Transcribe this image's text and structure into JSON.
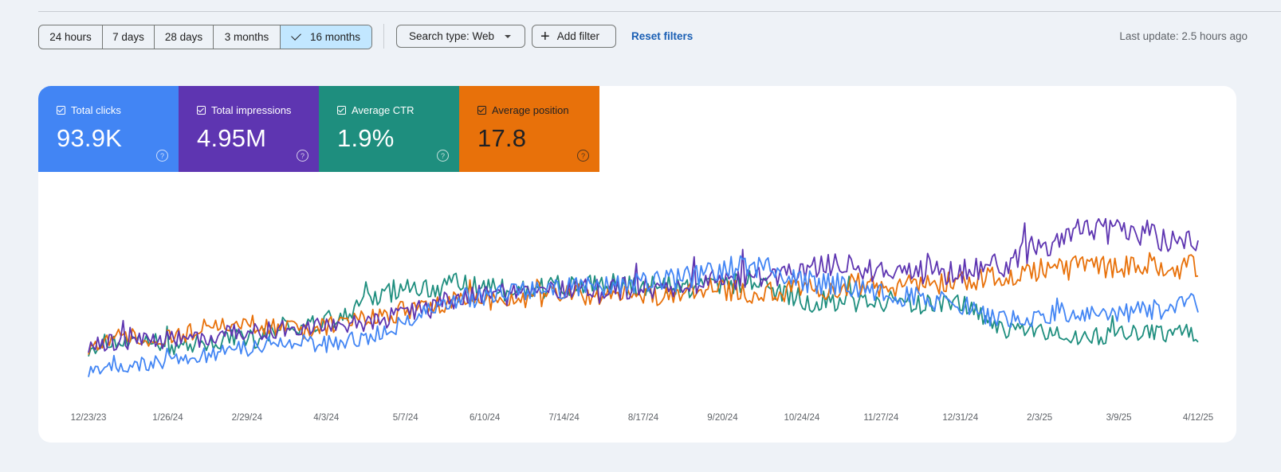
{
  "toolbar": {
    "ranges": [
      {
        "label": "24 hours",
        "selected": false
      },
      {
        "label": "7 days",
        "selected": false
      },
      {
        "label": "28 days",
        "selected": false
      },
      {
        "label": "3 months",
        "selected": false
      },
      {
        "label": "16 months",
        "selected": true
      }
    ],
    "search_type": "Search type: Web",
    "add_filter": "Add filter",
    "reset_filters": "Reset filters",
    "last_update": "Last update: 2.5 hours ago"
  },
  "metrics": [
    {
      "label": "Total clicks",
      "value": "93.9K",
      "color": "#4285f4",
      "checked": true
    },
    {
      "label": "Total impressions",
      "value": "4.95M",
      "color": "#5e35b1",
      "checked": true
    },
    {
      "label": "Average CTR",
      "value": "1.9%",
      "color": "#1e8e7e",
      "checked": true
    },
    {
      "label": "Average position",
      "value": "17.8",
      "color": "#e8710a",
      "checked": true
    }
  ],
  "chart_data": {
    "type": "line",
    "x_range": [
      "12/23/23",
      "4/18/25"
    ],
    "x_ticks": [
      "12/23/23",
      "1/26/24",
      "2/29/24",
      "4/3/24",
      "5/7/24",
      "6/10/24",
      "7/14/24",
      "8/17/24",
      "9/20/24",
      "10/24/24",
      "11/27/24",
      "12/31/24",
      "2/3/25",
      "3/9/25",
      "4/12/25"
    ],
    "y_axis_labels_visible": false,
    "series": [
      {
        "color": "#1e8e7e",
        "values": [
          0.22,
          0.26,
          0.24,
          0.26,
          0.22,
          0.25,
          0.25,
          0.29,
          0.26,
          0.35,
          0.33,
          0.36,
          0.39,
          0.46,
          0.52,
          0.57,
          0.54,
          0.57,
          0.55,
          0.55,
          0.53,
          0.54,
          0.57,
          0.54,
          0.57,
          0.55,
          0.56,
          0.57,
          0.55,
          0.56,
          0.58,
          0.58,
          0.54,
          0.51,
          0.47,
          0.48,
          0.47,
          0.48,
          0.47,
          0.46,
          0.45,
          0.46,
          0.38,
          0.32,
          0.31,
          0.3,
          0.29,
          0.28,
          0.3,
          0.3,
          0.31,
          0.3,
          0.3
        ]
      },
      {
        "color": "#e8710a",
        "values": [
          0.23,
          0.28,
          0.28,
          0.26,
          0.28,
          0.32,
          0.34,
          0.36,
          0.35,
          0.33,
          0.32,
          0.34,
          0.36,
          0.38,
          0.4,
          0.43,
          0.45,
          0.48,
          0.46,
          0.48,
          0.5,
          0.5,
          0.52,
          0.51,
          0.52,
          0.5,
          0.52,
          0.51,
          0.53,
          0.55,
          0.53,
          0.52,
          0.52,
          0.53,
          0.54,
          0.55,
          0.57,
          0.56,
          0.55,
          0.58,
          0.57,
          0.58,
          0.6,
          0.61,
          0.64,
          0.66,
          0.65,
          0.67,
          0.66,
          0.68,
          0.67,
          0.66,
          0.67
        ]
      },
      {
        "color": "#5e35b1",
        "values": [
          0.24,
          0.25,
          0.25,
          0.26,
          0.27,
          0.27,
          0.29,
          0.31,
          0.31,
          0.32,
          0.34,
          0.34,
          0.35,
          0.36,
          0.38,
          0.41,
          0.44,
          0.49,
          0.5,
          0.52,
          0.51,
          0.52,
          0.54,
          0.56,
          0.54,
          0.55,
          0.55,
          0.56,
          0.56,
          0.58,
          0.59,
          0.6,
          0.61,
          0.62,
          0.65,
          0.67,
          0.66,
          0.64,
          0.63,
          0.64,
          0.63,
          0.64,
          0.66,
          0.68,
          0.75,
          0.8,
          0.84,
          0.86,
          0.85,
          0.84,
          0.83,
          0.82,
          0.81
        ]
      },
      {
        "color": "#4285f4",
        "values": [
          0.1,
          0.11,
          0.12,
          0.14,
          0.16,
          0.18,
          0.19,
          0.21,
          0.23,
          0.25,
          0.25,
          0.24,
          0.26,
          0.28,
          0.31,
          0.36,
          0.44,
          0.48,
          0.5,
          0.52,
          0.54,
          0.53,
          0.55,
          0.56,
          0.55,
          0.56,
          0.57,
          0.58,
          0.6,
          0.62,
          0.66,
          0.68,
          0.65,
          0.6,
          0.58,
          0.57,
          0.55,
          0.53,
          0.51,
          0.49,
          0.48,
          0.46,
          0.4,
          0.37,
          0.38,
          0.41,
          0.42,
          0.4,
          0.41,
          0.42,
          0.43,
          0.44,
          0.47
        ]
      }
    ]
  }
}
